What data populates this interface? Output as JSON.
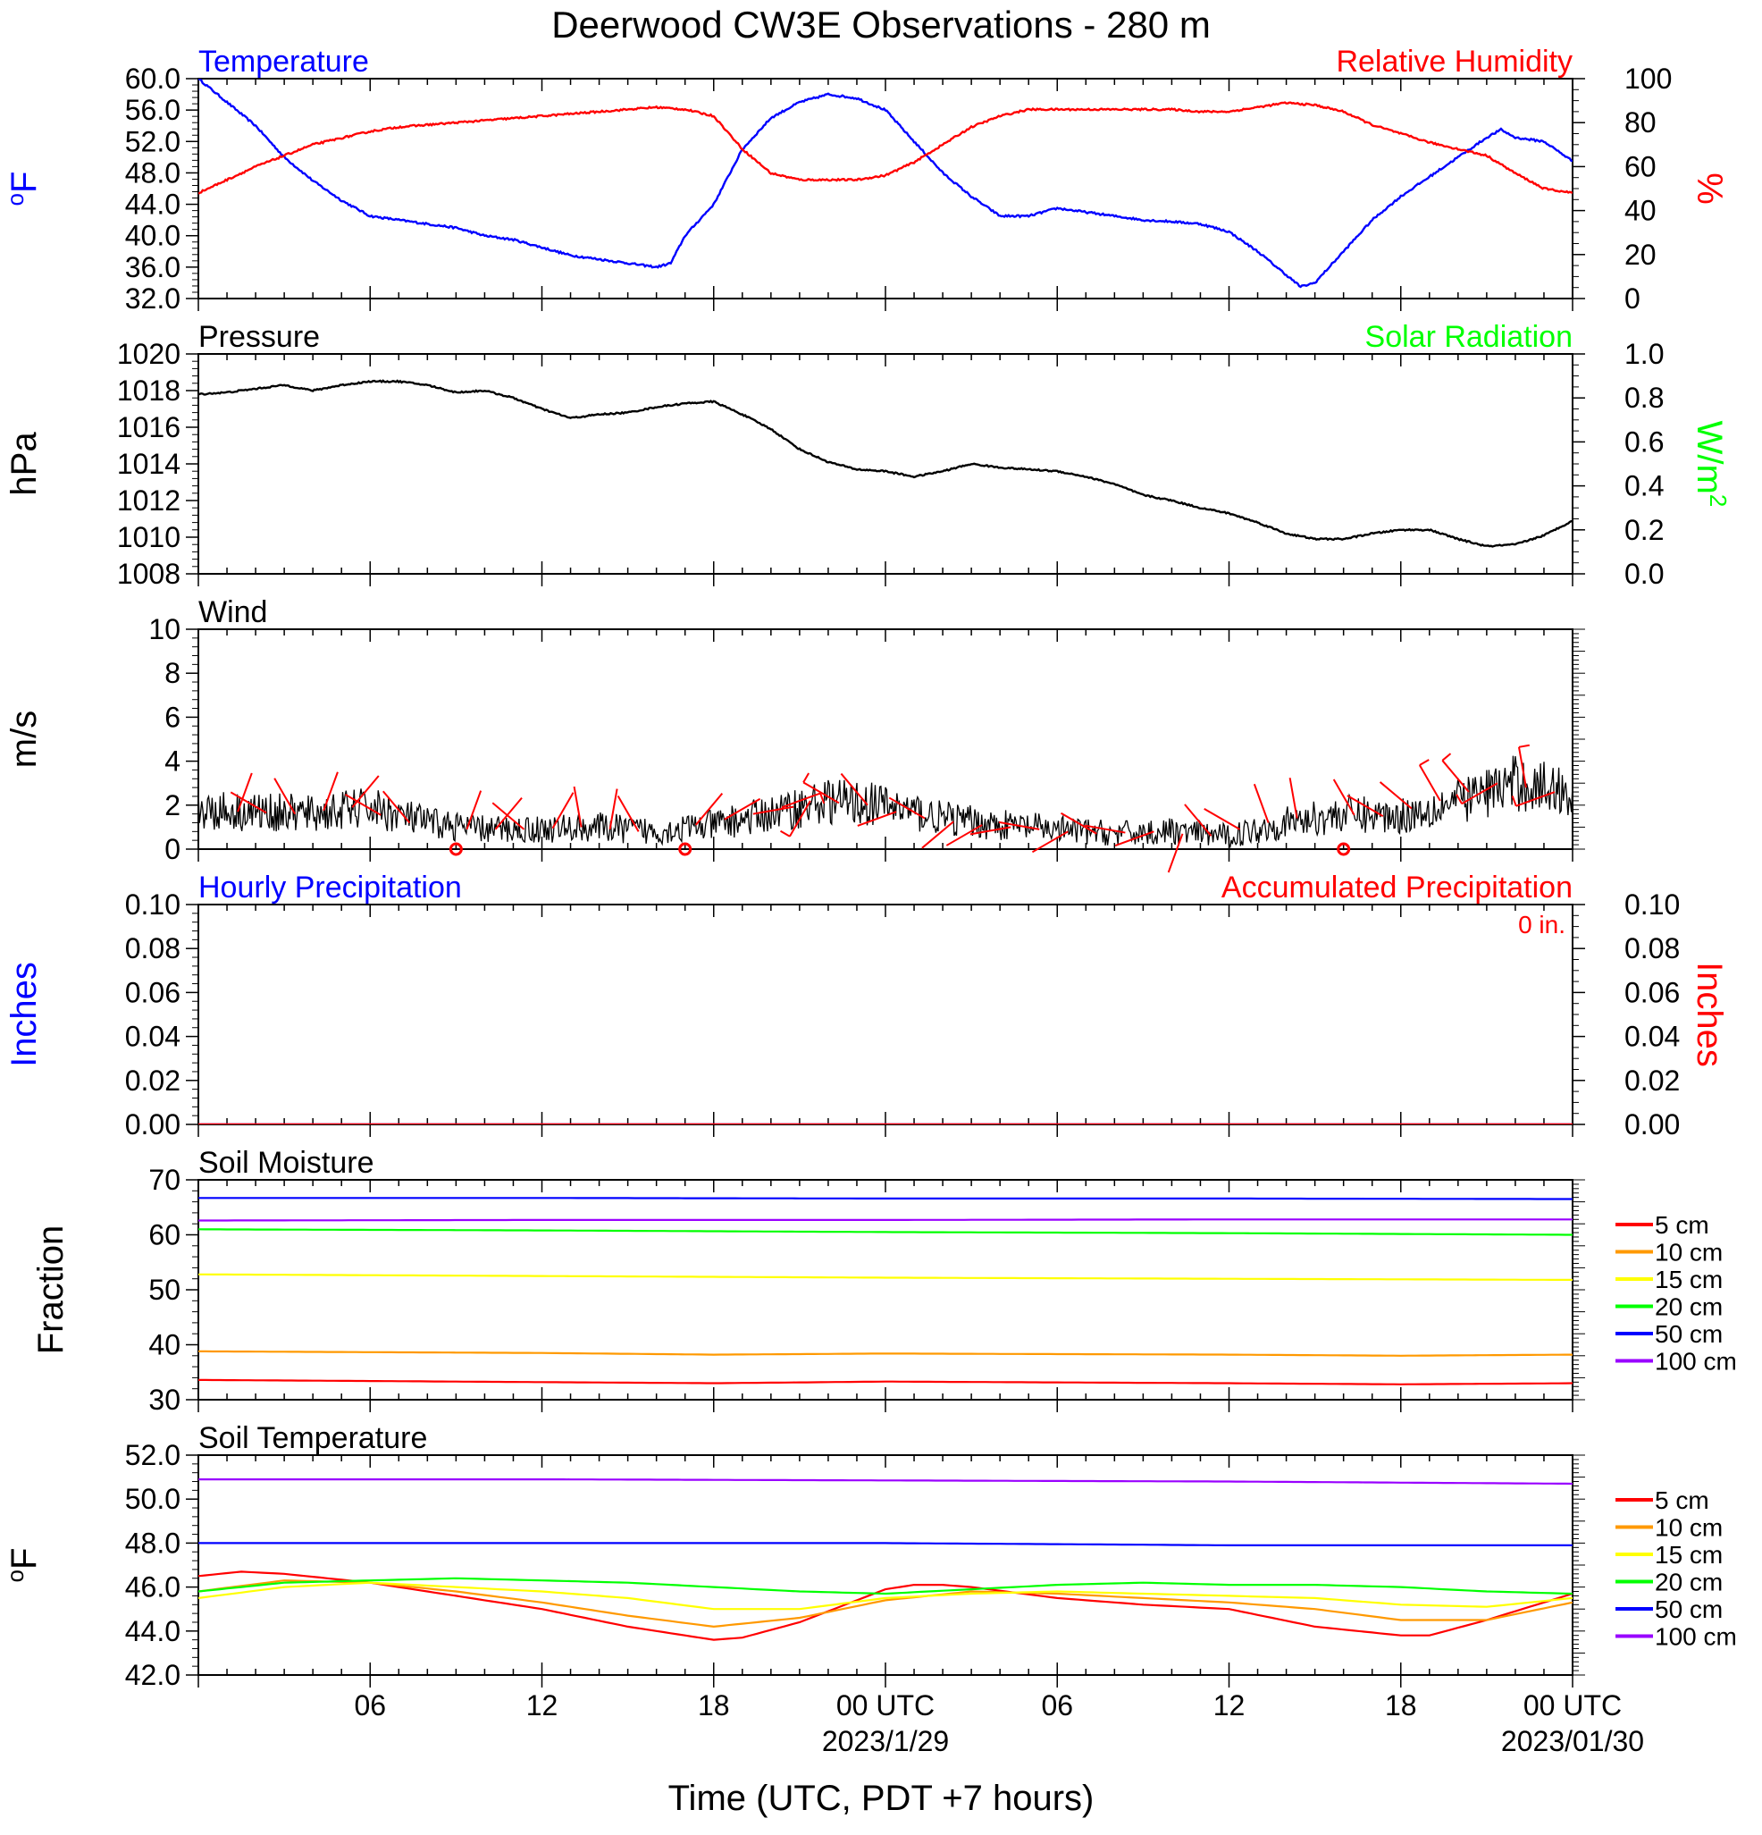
{
  "title": "Deerwood CW3E Observations - 280 m",
  "xlabel": "Time (UTC, PDT +7 hours)",
  "colors": {
    "temperature": "#0000ff",
    "humidity": "#ff0000",
    "solar": "#00ff00",
    "pressure": "#000000",
    "wind": "#000000",
    "barb": "#ff0000",
    "hourly_precip": "#0000ff",
    "accum_precip": "#ff0000"
  },
  "depth_colors": [
    "#ff0000",
    "#ff9900",
    "#ffff00",
    "#00ff00",
    "#0000ff",
    "#9900ff"
  ],
  "time_axis": {
    "hour_min": 0,
    "hour_max": 48,
    "ticks": [
      {
        "hour": 6,
        "label": "06",
        "date": ""
      },
      {
        "hour": 12,
        "label": "12",
        "date": ""
      },
      {
        "hour": 18,
        "label": "18",
        "date": ""
      },
      {
        "hour": 24,
        "label": "00 UTC",
        "date": "2023/1/29"
      },
      {
        "hour": 30,
        "label": "06",
        "date": ""
      },
      {
        "hour": 36,
        "label": "12",
        "date": ""
      },
      {
        "hour": 42,
        "label": "18",
        "date": ""
      },
      {
        "hour": 48,
        "label": "00 UTC",
        "date": "2023/01/30"
      }
    ]
  },
  "chart_data": [
    {
      "type": "line",
      "panel": "temperature_humidity",
      "left_title": "Temperature",
      "right_title": "Relative Humidity",
      "ylabel_left": "oF",
      "ylabel_right": "%",
      "ylim_left": [
        32,
        60
      ],
      "ylim_right": [
        0,
        100
      ],
      "yticks_left": [
        "32.0",
        "36.0",
        "40.0",
        "44.0",
        "48.0",
        "52.0",
        "56.0",
        "60.0"
      ],
      "yticks_right": [
        "0",
        "20",
        "40",
        "60",
        "80",
        "100"
      ],
      "series": [
        {
          "name": "Temperature",
          "axis": "left",
          "hours": [
            0,
            1,
            2,
            3,
            4,
            5,
            6,
            7,
            8,
            9,
            10,
            11,
            12,
            13,
            14,
            15,
            16,
            16.5,
            17,
            18,
            19,
            20,
            21,
            22,
            23,
            24,
            25,
            26,
            27,
            28,
            29,
            30,
            31,
            32,
            33,
            34,
            35,
            36,
            37,
            38,
            38.5,
            39,
            40,
            41,
            42,
            43,
            44,
            45,
            45.5,
            46,
            47,
            48
          ],
          "values": [
            60.0,
            57.0,
            54.0,
            50.0,
            47.0,
            44.5,
            42.5,
            42.0,
            41.5,
            41.0,
            40.0,
            39.5,
            38.5,
            37.5,
            37.0,
            36.5,
            36.0,
            36.5,
            40.0,
            44.0,
            51.0,
            55.0,
            57.0,
            58.0,
            57.5,
            56.0,
            52.0,
            48.0,
            45.0,
            42.5,
            42.5,
            43.5,
            43.0,
            42.5,
            42.0,
            41.8,
            41.5,
            40.5,
            38.0,
            35.0,
            33.5,
            34.0,
            38.0,
            42.0,
            45.0,
            47.5,
            50.0,
            52.5,
            53.5,
            52.5,
            52.0,
            49.5
          ]
        },
        {
          "name": "Relative Humidity",
          "axis": "right",
          "hours": [
            0,
            1,
            2,
            3,
            4,
            5,
            6,
            7,
            8,
            9,
            10,
            11,
            12,
            13,
            14,
            15,
            16,
            17,
            18,
            19,
            20,
            21,
            22,
            23,
            24,
            25,
            26,
            27,
            28,
            29,
            30,
            31,
            32,
            33,
            34,
            35,
            36,
            37,
            38,
            39,
            40,
            41,
            42,
            43,
            44,
            45,
            46,
            47,
            48
          ],
          "values": [
            48,
            54,
            60,
            65,
            70,
            73,
            76,
            78,
            79,
            80,
            81,
            82,
            83,
            84,
            85,
            86,
            87,
            86,
            83,
            68,
            57,
            54,
            54,
            54,
            56,
            62,
            70,
            78,
            83,
            86,
            86,
            86,
            86,
            86,
            86,
            85,
            85,
            87,
            89,
            88,
            85,
            79,
            75,
            71,
            68,
            65,
            57,
            50,
            48
          ]
        }
      ]
    },
    {
      "type": "line",
      "panel": "pressure_solar",
      "left_title": "Pressure",
      "right_title": "Solar Radiation",
      "ylabel_left": "hPa",
      "ylabel_right": "W/m2",
      "ylim_left": [
        1008,
        1020
      ],
      "ylim_right": [
        0,
        1
      ],
      "yticks_left": [
        "1008",
        "1010",
        "1012",
        "1014",
        "1016",
        "1018",
        "1020"
      ],
      "yticks_right": [
        "0.0",
        "0.2",
        "0.4",
        "0.6",
        "0.8",
        "1.0"
      ],
      "series": [
        {
          "name": "Pressure",
          "axis": "left",
          "hours": [
            0,
            1,
            2,
            3,
            4,
            5,
            6,
            7,
            8,
            9,
            10,
            11,
            12,
            13,
            14,
            15,
            16,
            17,
            18,
            19,
            20,
            21,
            22,
            23,
            24,
            25,
            26,
            27,
            28,
            29,
            30,
            31,
            32,
            33,
            34,
            35,
            36,
            37,
            38,
            39,
            40,
            41,
            42,
            43,
            44,
            45,
            46,
            47,
            48
          ],
          "values": [
            1017.8,
            1017.9,
            1018.1,
            1018.3,
            1018.0,
            1018.3,
            1018.5,
            1018.5,
            1018.3,
            1017.9,
            1018.0,
            1017.6,
            1017.0,
            1016.5,
            1016.7,
            1016.8,
            1017.1,
            1017.3,
            1017.4,
            1016.7,
            1015.9,
            1014.8,
            1014.1,
            1013.7,
            1013.6,
            1013.3,
            1013.6,
            1014.0,
            1013.8,
            1013.7,
            1013.6,
            1013.3,
            1012.9,
            1012.3,
            1012.0,
            1011.6,
            1011.3,
            1010.8,
            1010.2,
            1009.9,
            1009.9,
            1010.2,
            1010.4,
            1010.4,
            1009.9,
            1009.5,
            1009.6,
            1010.1,
            1010.9
          ]
        }
      ]
    },
    {
      "type": "line",
      "panel": "wind",
      "left_title": "Wind",
      "ylabel_left": "m/s",
      "ylim_left": [
        0,
        10
      ],
      "yticks_left": [
        "0",
        "2",
        "4",
        "6",
        "8",
        "10"
      ],
      "series": [
        {
          "name": "Wind",
          "axis": "left",
          "hours": [
            0,
            2,
            4,
            6,
            8,
            10,
            12,
            14,
            16,
            18,
            20,
            22,
            24,
            26,
            28,
            30,
            32,
            34,
            36,
            38,
            40,
            42,
            44,
            46,
            48
          ],
          "values": [
            1.8,
            1.7,
            1.6,
            1.9,
            1.2,
            0.9,
            0.9,
            1.0,
            0.8,
            1.1,
            1.6,
            2.2,
            2.0,
            1.4,
            1.1,
            0.9,
            0.7,
            0.8,
            0.6,
            1.2,
            1.6,
            1.5,
            2.2,
            3.0,
            2.6
          ]
        }
      ],
      "barb_hours": [
        2,
        3,
        4,
        5,
        6,
        7,
        8,
        9,
        10,
        11,
        12,
        13,
        14,
        15,
        16,
        17,
        18,
        19,
        20,
        21,
        22,
        23,
        24,
        25,
        26,
        27,
        28,
        29,
        30,
        31,
        32,
        33,
        34,
        35,
        36,
        37,
        38,
        39,
        40,
        41,
        42,
        43,
        44,
        45,
        46,
        47,
        48
      ],
      "barb_speed": [
        1.5,
        1.5,
        1.5,
        1.5,
        1.5,
        1.2,
        1.0,
        0.0,
        1.2,
        1.0,
        0.9,
        1.0,
        1.0,
        1.0,
        1.0,
        0.0,
        0.8,
        1.5,
        2.2,
        2.8,
        2.7,
        2.5,
        2.0,
        1.8,
        1.4,
        1.0,
        1.2,
        1.0,
        0.8,
        0.9,
        1.0,
        1.0,
        0.8,
        0.9,
        0.6,
        0.9,
        1.0,
        1.0,
        0.0,
        1.2,
        1.5,
        2.0,
        2.5,
        3.5,
        3.0,
        3.5,
        4.0
      ],
      "barb_dir_deg": [
        20,
        300,
        330,
        20,
        40,
        300,
        320,
        0,
        20,
        40,
        310,
        30,
        350,
        10,
        330,
        0,
        40,
        60,
        80,
        70,
        210,
        300,
        320,
        250,
        300,
        230,
        240,
        260,
        280,
        240,
        300,
        280,
        250,
        200,
        320,
        300,
        340,
        350,
        0,
        330,
        300,
        310,
        330,
        320,
        240,
        350,
        250
      ]
    },
    {
      "type": "line",
      "panel": "precipitation",
      "left_title": "Hourly Precipitation",
      "right_title": "Accumulated Precipitation",
      "annotation": "0 in.",
      "ylabel_left": "Inches",
      "ylabel_right": "Inches",
      "ylim_left": [
        0,
        0.1
      ],
      "ylim_right": [
        0,
        0.1
      ],
      "yticks_left": [
        "0.00",
        "0.02",
        "0.04",
        "0.06",
        "0.08",
        "0.10"
      ],
      "yticks_right": [
        "0.00",
        "0.02",
        "0.04",
        "0.06",
        "0.08",
        "0.10"
      ],
      "series": [
        {
          "name": "Hourly Precipitation",
          "axis": "left",
          "hours": [
            0,
            48
          ],
          "values": [
            0,
            0
          ]
        },
        {
          "name": "Accumulated Precipitation",
          "axis": "right",
          "hours": [
            0,
            48
          ],
          "values": [
            0,
            0
          ]
        }
      ]
    },
    {
      "type": "line",
      "panel": "soil_moisture",
      "left_title": "Soil Moisture",
      "ylabel_left": "Fraction",
      "ylim_left": [
        30,
        70
      ],
      "yticks_left": [
        "30",
        "40",
        "50",
        "60",
        "70"
      ],
      "legend": [
        "5 cm",
        "10 cm",
        "15 cm",
        "20 cm",
        "50 cm",
        "100 cm"
      ],
      "series": [
        {
          "name": "5 cm",
          "axis": "left",
          "hours": [
            0,
            12,
            18,
            24,
            36,
            42,
            48
          ],
          "values": [
            33.6,
            33.2,
            33.0,
            33.3,
            33.0,
            32.8,
            33.0
          ]
        },
        {
          "name": "10 cm",
          "axis": "left",
          "hours": [
            0,
            12,
            18,
            24,
            36,
            42,
            48
          ],
          "values": [
            38.8,
            38.5,
            38.2,
            38.4,
            38.2,
            38.0,
            38.2
          ]
        },
        {
          "name": "15 cm",
          "axis": "left",
          "hours": [
            0,
            12,
            24,
            36,
            48
          ],
          "values": [
            52.8,
            52.5,
            52.2,
            52.0,
            51.8
          ]
        },
        {
          "name": "20 cm",
          "axis": "left",
          "hours": [
            0,
            12,
            24,
            36,
            48
          ],
          "values": [
            61.0,
            60.8,
            60.5,
            60.3,
            60.0
          ]
        },
        {
          "name": "50 cm",
          "axis": "left",
          "hours": [
            0,
            12,
            24,
            36,
            48
          ],
          "values": [
            66.7,
            66.7,
            66.6,
            66.6,
            66.5
          ]
        },
        {
          "name": "100 cm",
          "axis": "left",
          "hours": [
            0,
            12,
            24,
            36,
            48
          ],
          "values": [
            62.6,
            62.7,
            62.7,
            62.8,
            62.8
          ]
        }
      ]
    },
    {
      "type": "line",
      "panel": "soil_temperature",
      "left_title": "Soil Temperature",
      "ylabel_left": "oF",
      "ylim_left": [
        42,
        52
      ],
      "yticks_left": [
        "42.0",
        "44.0",
        "46.0",
        "48.0",
        "50.0",
        "52.0"
      ],
      "legend": [
        "5 cm",
        "10 cm",
        "15 cm",
        "20 cm",
        "50 cm",
        "100 cm"
      ],
      "series": [
        {
          "name": "5 cm",
          "axis": "left",
          "hours": [
            0,
            1.5,
            3,
            6,
            9,
            12,
            15,
            18,
            19,
            21,
            24,
            25,
            26,
            27,
            30,
            33,
            36,
            39,
            42,
            43,
            45,
            48
          ],
          "values": [
            46.5,
            46.7,
            46.6,
            46.2,
            45.6,
            45.0,
            44.2,
            43.6,
            43.7,
            44.4,
            45.9,
            46.1,
            46.1,
            46.0,
            45.5,
            45.2,
            45.0,
            44.2,
            43.8,
            43.8,
            44.5,
            45.7
          ]
        },
        {
          "name": "10 cm",
          "axis": "left",
          "hours": [
            0,
            3,
            6,
            9,
            12,
            15,
            18,
            21,
            24,
            27,
            30,
            33,
            36,
            39,
            42,
            45,
            48
          ],
          "values": [
            45.8,
            46.3,
            46.2,
            45.8,
            45.3,
            44.7,
            44.2,
            44.6,
            45.4,
            45.8,
            45.7,
            45.5,
            45.3,
            45.0,
            44.5,
            44.5,
            45.3
          ]
        },
        {
          "name": "15 cm",
          "axis": "left",
          "hours": [
            0,
            3,
            6,
            9,
            12,
            15,
            18,
            21,
            24,
            27,
            30,
            33,
            36,
            39,
            42,
            45,
            48
          ],
          "values": [
            45.5,
            46.0,
            46.2,
            46.0,
            45.8,
            45.5,
            45.0,
            45.0,
            45.5,
            45.7,
            45.8,
            45.7,
            45.6,
            45.5,
            45.2,
            45.1,
            45.5
          ]
        },
        {
          "name": "20 cm",
          "axis": "left",
          "hours": [
            0,
            3,
            6,
            9,
            12,
            15,
            18,
            21,
            24,
            27,
            30,
            33,
            36,
            39,
            42,
            45,
            48
          ],
          "values": [
            45.8,
            46.2,
            46.3,
            46.4,
            46.3,
            46.2,
            46.0,
            45.8,
            45.7,
            45.9,
            46.1,
            46.2,
            46.1,
            46.1,
            46.0,
            45.8,
            45.7
          ]
        },
        {
          "name": "50 cm",
          "axis": "left",
          "hours": [
            0,
            12,
            24,
            36,
            48
          ],
          "values": [
            48.0,
            48.0,
            48.0,
            47.9,
            47.9
          ]
        },
        {
          "name": "100 cm",
          "axis": "left",
          "hours": [
            0,
            12,
            24,
            36,
            48
          ],
          "values": [
            50.9,
            50.9,
            50.85,
            50.8,
            50.7
          ]
        }
      ]
    }
  ]
}
